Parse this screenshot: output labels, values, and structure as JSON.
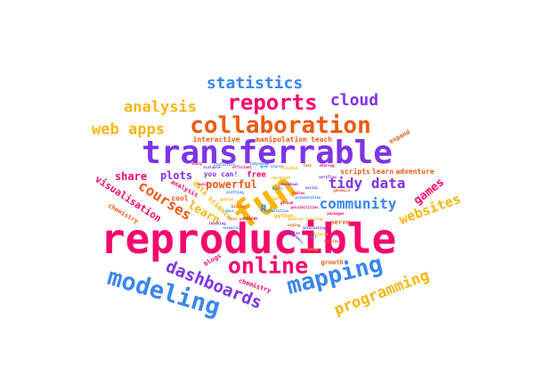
{
  "colors": {
    "pink": "#f5086e",
    "purple": "#7d35e6",
    "blue": "#3a86ef",
    "orange": "#ee5a12",
    "yellow": "#f7b70f"
  },
  "words": [
    {
      "id": "reproducible",
      "text": "reproducible",
      "color": "pink"
    },
    {
      "id": "transferrable",
      "text": "transferrable",
      "color": "purple"
    },
    {
      "id": "collaboration",
      "text": "collaboration",
      "color": "orange"
    },
    {
      "id": "fun",
      "text": "fun",
      "color": "yellow"
    },
    {
      "id": "modeling",
      "text": "modeling",
      "color": "blue"
    },
    {
      "id": "mapping",
      "text": "mapping",
      "color": "blue"
    },
    {
      "id": "reports",
      "text": "reports",
      "color": "pink"
    },
    {
      "id": "online",
      "text": "online",
      "color": "pink"
    },
    {
      "id": "dashboards",
      "text": "dashboards",
      "color": "purple"
    },
    {
      "id": "programming",
      "text": "programming",
      "color": "yellow"
    },
    {
      "id": "statistics",
      "text": "statistics",
      "color": "blue"
    },
    {
      "id": "cloud",
      "text": "cloud",
      "color": "purple"
    },
    {
      "id": "analysis",
      "text": "analysis",
      "color": "yellow"
    },
    {
      "id": "web-apps",
      "text": "web apps",
      "color": "yellow"
    },
    {
      "id": "tidy-data",
      "text": "tidy data",
      "color": "purple"
    },
    {
      "id": "community",
      "text": "community",
      "color": "blue"
    },
    {
      "id": "websites",
      "text": "websites",
      "color": "yellow"
    },
    {
      "id": "courses",
      "text": "courses",
      "color": "orange"
    },
    {
      "id": "games",
      "text": "games",
      "color": "pink"
    },
    {
      "id": "visualisation",
      "text": "visualisation",
      "color": "pink"
    },
    {
      "id": "share",
      "text": "share",
      "color": "pink"
    },
    {
      "id": "plots",
      "text": "plots",
      "color": "purple"
    },
    {
      "id": "powerful",
      "text": "powerful",
      "color": "orange"
    },
    {
      "id": "learn",
      "text": "learn",
      "color": "yellow"
    },
    {
      "id": "interactive",
      "text": "interactive",
      "color": "orange"
    },
    {
      "id": "manipulation",
      "text": "manipulation",
      "color": "orange"
    },
    {
      "id": "teach",
      "text": "teach",
      "color": "orange"
    },
    {
      "id": "expand",
      "text": "expand",
      "color": "orange"
    },
    {
      "id": "scripts",
      "text": "scripts",
      "color": "orange"
    },
    {
      "id": "learn-2",
      "text": "learn",
      "color": "orange"
    },
    {
      "id": "adventure",
      "text": "adventure",
      "color": "orange"
    },
    {
      "id": "you-can",
      "text": "you can!",
      "color": "purple"
    },
    {
      "id": "free",
      "text": "free",
      "color": "pink"
    },
    {
      "id": "R",
      "text": "R",
      "color": "blue"
    },
    {
      "id": "cool",
      "text": "cool",
      "color": "orange"
    },
    {
      "id": "analysis-2",
      "text": "analysis",
      "color": "pink"
    },
    {
      "id": "data-science",
      "text": "data science",
      "color": "yellow"
    },
    {
      "id": "chemistry",
      "text": "chemistry",
      "color": "orange"
    },
    {
      "id": "chemistry-2",
      "text": "chemistry",
      "color": "pink"
    },
    {
      "id": "blogs",
      "text": "blogs",
      "color": "pink"
    },
    {
      "id": "growth",
      "text": "growth",
      "color": "orange"
    },
    {
      "id": "serve",
      "text": "serve",
      "color": "orange"
    },
    {
      "id": "python",
      "text": "python",
      "color": "yellow"
    },
    {
      "id": "tiny-1",
      "text": "scalable",
      "color": "purple"
    },
    {
      "id": "tiny-2",
      "text": "statistics",
      "color": "blue"
    },
    {
      "id": "tiny-3",
      "text": "efficient",
      "color": "pink"
    },
    {
      "id": "tiny-4",
      "text": "open source",
      "color": "blue"
    },
    {
      "id": "tiny-5",
      "text": "flexible",
      "color": "yellow"
    },
    {
      "id": "tiny-6",
      "text": "fast",
      "color": "orange"
    },
    {
      "id": "tiny-7",
      "text": "social",
      "color": "purple"
    },
    {
      "id": "tiny-8",
      "text": "presentation",
      "color": "blue"
    },
    {
      "id": "tiny-9",
      "text": "possibilities",
      "color": "pink"
    },
    {
      "id": "tiny-10",
      "text": "machine learning",
      "color": "yellow"
    },
    {
      "id": "tiny-11",
      "text": "simulation",
      "color": "blue"
    },
    {
      "id": "tiny-12",
      "text": "interesting",
      "color": "purple"
    },
    {
      "id": "tiny-13",
      "text": "coding",
      "color": "orange"
    },
    {
      "id": "tiny-14",
      "text": "packages",
      "color": "pink"
    },
    {
      "id": "tiny-15",
      "text": "rmarkdown",
      "color": "yellow"
    },
    {
      "id": "tiny-16",
      "text": "bookdown",
      "color": "purple"
    },
    {
      "id": "tiny-17",
      "text": "knitr",
      "color": "blue"
    },
    {
      "id": "tiny-18",
      "text": "tables",
      "color": "pink"
    },
    {
      "id": "tiny-19",
      "text": "plotting",
      "color": "blue"
    },
    {
      "id": "tiny-20",
      "text": "spatial",
      "color": "yellow"
    },
    {
      "id": "tiny-21",
      "text": "biology",
      "color": "orange"
    },
    {
      "id": "tiny-22",
      "text": "ecology",
      "color": "pink"
    },
    {
      "id": "tiny-23",
      "text": "teaching",
      "color": "purple"
    },
    {
      "id": "tiny-24",
      "text": "research",
      "color": "blue"
    },
    {
      "id": "tiny-25",
      "text": "insight",
      "color": "yellow"
    },
    {
      "id": "tiny-26",
      "text": "github",
      "color": "pink"
    },
    {
      "id": "tiny-27",
      "text": "workflow",
      "color": "purple"
    },
    {
      "id": "tiny-28",
      "text": "genomics",
      "color": "orange"
    },
    {
      "id": "tiny-29",
      "text": "shiny",
      "color": "pink"
    },
    {
      "id": "tiny-30",
      "text": "tidyverse",
      "color": "blue"
    },
    {
      "id": "tiny-31",
      "text": "finance",
      "color": "yellow"
    },
    {
      "id": "tiny-32",
      "text": "complex",
      "color": "orange"
    },
    {
      "id": "tiny-33",
      "text": "models",
      "color": "purple"
    },
    {
      "id": "tiny-34",
      "text": "art",
      "color": "blue"
    },
    {
      "id": "tiny-35",
      "text": "music",
      "color": "pink"
    },
    {
      "id": "tiny-36",
      "text": "text mining",
      "color": "orange"
    },
    {
      "id": "tiny-37",
      "text": "friends",
      "color": "yellow"
    },
    {
      "id": "tiny-38",
      "text": "sharing",
      "color": "pink"
    },
    {
      "id": "tiny-39",
      "text": "docs",
      "color": "blue"
    },
    {
      "id": "tiny-40",
      "text": "creative",
      "color": "purple"
    }
  ]
}
